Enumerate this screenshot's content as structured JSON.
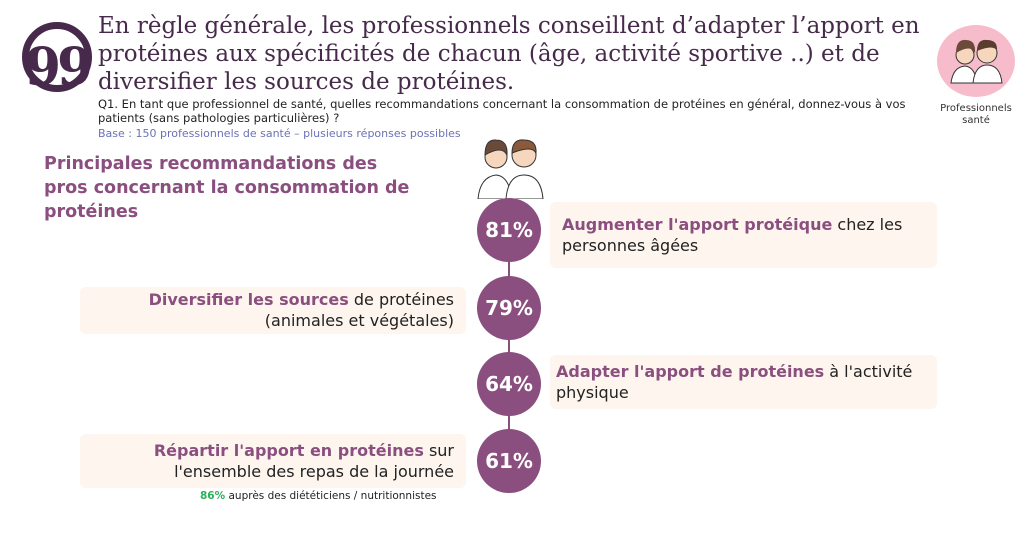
{
  "title": "En règle générale, les professionnels conseillent d’adapter l’apport en protéines aux spécificités de chacun (âge, activité sportive ..) et de diversifier les sources de protéines.",
  "question": "Q1. En tant que professionnel de santé, quelles recommandations concernant la consommation de protéines en général, donnez-vous à vos patients (sans pathologies particulières) ?",
  "base": "Base : 150 professionnels de santé – plusieurs réponses possibles",
  "heading": "Principales recommandations des pros concernant la consommation de protéines",
  "audience_label": "Professionnels santé",
  "quote_glyph": "99",
  "items": [
    {
      "pct": "81%",
      "bold": "Augmenter l'apport protéique",
      "rest": " chez les personnes âgées"
    },
    {
      "pct": "79%",
      "bold": "Diversifier les sources",
      "rest": " de protéines (animales et végétales)"
    },
    {
      "pct": "64%",
      "bold": "Adapter l'apport de protéines",
      "rest": " à l'activité physique"
    },
    {
      "pct": "61%",
      "bold": "Répartir l'apport en protéines",
      "rest": " sur l'ensemble des repas de la journée"
    }
  ],
  "note": {
    "pct": "86%",
    "text": " auprès des diététiciens / nutritionnistes"
  },
  "colors": {
    "dark": "#472a4b",
    "accent": "#8a4f7f",
    "box": "#fdf5ee",
    "base": "#6a72b5",
    "note": "#2bb05a",
    "pink": "#f7bccb"
  }
}
